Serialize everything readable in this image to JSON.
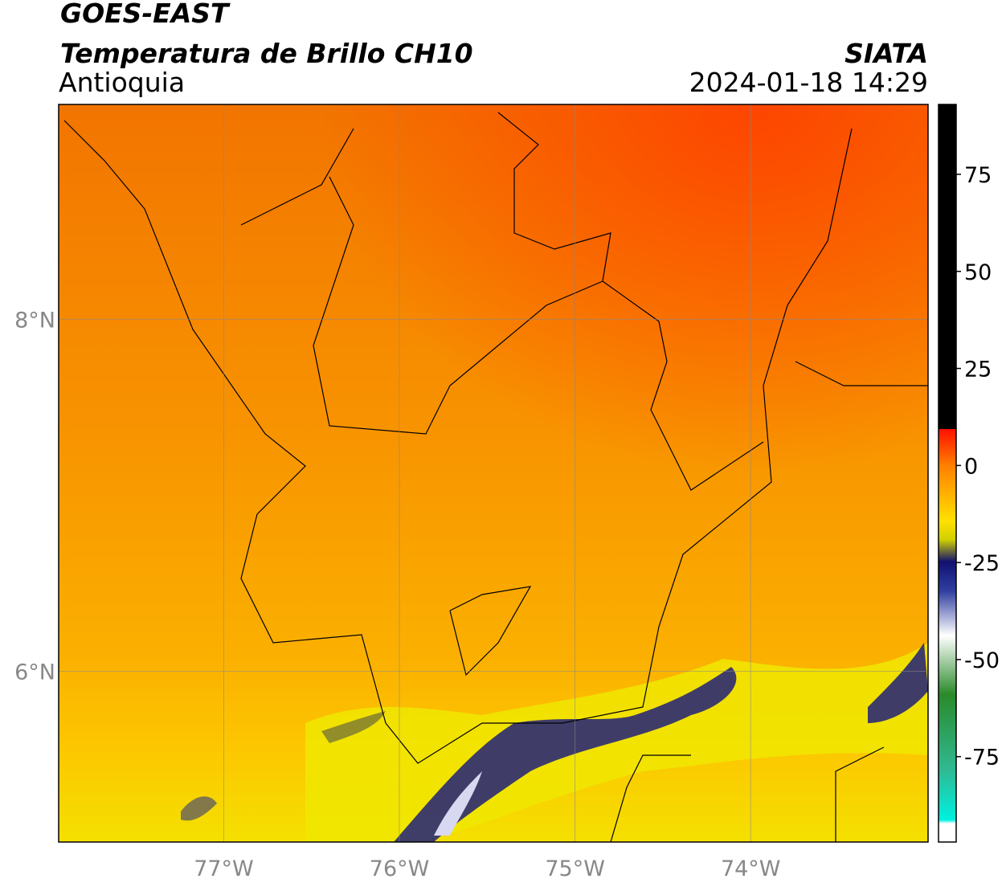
{
  "header": {
    "title": "GOES-EAST",
    "subtitle": "Temperatura de Brillo CH10",
    "region": "Antioquia",
    "source": "SIATA",
    "timestamp": "2024-01-18 14:29"
  },
  "map": {
    "xlim": [
      -77.94,
      -72.99
    ],
    "ylim": [
      5.03,
      9.22
    ],
    "xticks": [
      {
        "value": -77,
        "label": "77°W"
      },
      {
        "value": -76,
        "label": "76°W"
      },
      {
        "value": -75,
        "label": "75°W"
      },
      {
        "value": -74,
        "label": "74°W"
      }
    ],
    "yticks": [
      {
        "value": 8,
        "label": "8°N"
      },
      {
        "value": 6,
        "label": "6°N"
      }
    ],
    "grid": true
  },
  "colorbar": {
    "lim": [
      -97,
      93
    ],
    "ticks": [
      75,
      50,
      25,
      0,
      -25,
      -50,
      -75
    ]
  }
}
